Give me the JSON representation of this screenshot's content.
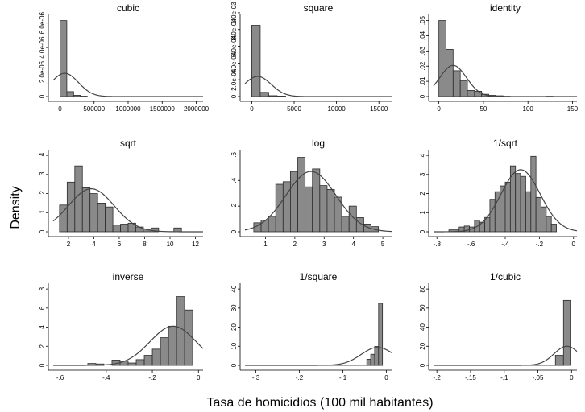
{
  "chart_data": {
    "type": "histogram-grid",
    "ylabel": "Density",
    "xlabel": "Tasa de homicidios (100 mil habitantes)",
    "panels": [
      {
        "title": "cubic",
        "xticks": [
          0,
          500000,
          1000000,
          1500000,
          2000000
        ],
        "xtick_labels": [
          "0",
          "500000",
          "1000000",
          "1500000",
          "2000000"
        ],
        "xlim": [
          -100000,
          2100000
        ],
        "yticks": [
          0,
          2e-06,
          4e-06,
          6e-06
        ],
        "ytick_labels": [
          "0",
          "2.0e-06",
          "4.0e-06",
          "6.0e-06"
        ],
        "ylim": [
          0,
          6.7e-06
        ],
        "bins": [
          [
            0,
            100000,
            6.2e-06
          ],
          [
            100000,
            200000,
            4e-07
          ],
          [
            200000,
            300000,
            1e-07
          ],
          [
            300000,
            400000,
            3e-08
          ]
        ],
        "curve": {
          "mu": 70000,
          "sigma": 200000,
          "scale": 1.9e-06
        }
      },
      {
        "title": "square",
        "xticks": [
          0,
          5000,
          10000,
          15000
        ],
        "xtick_labels": [
          "0",
          "5000",
          "10000",
          "15000"
        ],
        "xlim": [
          -800,
          16500
        ],
        "yticks": [
          0,
          0.0002,
          0.0004,
          0.0006,
          0.0008,
          0.001
        ],
        "ytick_labels": [
          "0",
          "2.0e-04",
          "4.0e-04",
          "6.0e-04",
          "8.0e-04",
          "1.0e-03"
        ],
        "ylim": [
          0,
          0.00098
        ],
        "bins": [
          [
            0,
            1000,
            0.00085
          ],
          [
            1000,
            2000,
            5e-05
          ],
          [
            2000,
            3000,
            1e-05
          ],
          [
            3000,
            4000,
            5e-06
          ]
        ],
        "curve": {
          "mu": 700,
          "sigma": 1600,
          "scale": 0.00024
        }
      },
      {
        "title": "identity",
        "xticks": [
          0,
          50,
          100,
          150
        ],
        "xtick_labels": [
          "0",
          "50",
          "100",
          "150"
        ],
        "xlim": [
          -6,
          155
        ],
        "yticks": [
          0,
          0.01,
          0.02,
          0.03,
          0.04,
          0.05
        ],
        "ytick_labels": [
          "0",
          ".01",
          ".02",
          ".03",
          ".04",
          ".05"
        ],
        "ylim": [
          0,
          0.054
        ],
        "bins": [
          [
            0,
            8,
            0.05
          ],
          [
            8,
            16,
            0.031
          ],
          [
            16,
            24,
            0.017
          ],
          [
            24,
            32,
            0.0105
          ],
          [
            32,
            40,
            0.004
          ],
          [
            40,
            48,
            0.0035
          ],
          [
            48,
            56,
            0.0015
          ],
          [
            56,
            64,
            0.0008
          ],
          [
            64,
            72,
            0.0005
          ],
          [
            72,
            80,
            0.0002
          ],
          [
            120,
            128,
            0.0002
          ]
        ],
        "curve": {
          "mu": 16,
          "sigma": 15,
          "scale": 0.0205
        }
      },
      {
        "title": "sqrt",
        "xticks": [
          2,
          4,
          6,
          8,
          10,
          12
        ],
        "xtick_labels": [
          "2",
          "4",
          "6",
          "8",
          "10",
          "12"
        ],
        "xlim": [
          0.8,
          12.6
        ],
        "yticks": [
          0,
          0.1,
          0.2,
          0.3,
          0.4
        ],
        "ytick_labels": [
          "0",
          ".1",
          ".2",
          ".3",
          ".4"
        ],
        "ylim": [
          0,
          0.43
        ],
        "bins": [
          [
            1.3,
            1.9,
            0.14
          ],
          [
            1.9,
            2.5,
            0.26
          ],
          [
            2.5,
            3.1,
            0.345
          ],
          [
            3.1,
            3.7,
            0.23
          ],
          [
            3.7,
            4.3,
            0.2
          ],
          [
            4.3,
            4.9,
            0.15
          ],
          [
            4.9,
            5.5,
            0.13
          ],
          [
            5.5,
            6.1,
            0.035
          ],
          [
            6.1,
            6.7,
            0.04
          ],
          [
            6.7,
            7.3,
            0.045
          ],
          [
            7.3,
            7.9,
            0.025
          ],
          [
            7.9,
            8.5,
            0.015
          ],
          [
            8.5,
            9.1,
            0.02
          ],
          [
            10.3,
            10.9,
            0.02
          ]
        ],
        "curve": {
          "mu": 3.8,
          "sigma": 1.8,
          "scale": 0.225
        }
      },
      {
        "title": "log",
        "xticks": [
          1,
          2,
          3,
          4,
          5
        ],
        "xtick_labels": [
          "1",
          "2",
          "3",
          "4",
          "5"
        ],
        "xlim": [
          0.3,
          5.3
        ],
        "yticks": [
          0,
          0.2,
          0.4,
          0.6
        ],
        "ytick_labels": [
          "0",
          ".2",
          ".4",
          ".6"
        ],
        "ylim": [
          0,
          0.64
        ],
        "bins": [
          [
            0.6,
            0.85,
            0.07
          ],
          [
            0.85,
            1.1,
            0.09
          ],
          [
            1.1,
            1.35,
            0.12
          ],
          [
            1.35,
            1.6,
            0.37
          ],
          [
            1.6,
            1.85,
            0.39
          ],
          [
            1.85,
            2.1,
            0.47
          ],
          [
            2.1,
            2.35,
            0.58
          ],
          [
            2.35,
            2.6,
            0.35
          ],
          [
            2.6,
            2.85,
            0.49
          ],
          [
            2.85,
            3.1,
            0.36
          ],
          [
            3.1,
            3.35,
            0.33
          ],
          [
            3.35,
            3.6,
            0.27
          ],
          [
            3.6,
            3.85,
            0.12
          ],
          [
            3.85,
            4.1,
            0.2
          ],
          [
            4.1,
            4.35,
            0.11
          ],
          [
            4.35,
            4.6,
            0.06
          ],
          [
            4.6,
            4.85,
            0.04
          ]
        ],
        "curve": {
          "mu": 2.55,
          "sigma": 0.85,
          "scale": 0.47
        }
      },
      {
        "title": "1/sqrt",
        "xticks": [
          -0.8,
          -0.6,
          -0.4,
          -0.2,
          0
        ],
        "xtick_labels": [
          "-.8",
          "-.6",
          "-.4",
          "-.2",
          "0"
        ],
        "xlim": [
          -0.82,
          0.02
        ],
        "yticks": [
          0,
          1,
          2,
          3,
          4
        ],
        "ytick_labels": [
          "0",
          "1",
          "2",
          "3",
          "4"
        ],
        "ylim": [
          0,
          4.3
        ],
        "bins": [
          [
            -0.73,
            -0.7,
            0.1
          ],
          [
            -0.7,
            -0.67,
            0.1
          ],
          [
            -0.67,
            -0.64,
            0.25
          ],
          [
            -0.64,
            -0.61,
            0.3
          ],
          [
            -0.61,
            -0.58,
            0.25
          ],
          [
            -0.58,
            -0.55,
            0.6
          ],
          [
            -0.55,
            -0.52,
            0.5
          ],
          [
            -0.52,
            -0.49,
            0.75
          ],
          [
            -0.49,
            -0.46,
            1.7
          ],
          [
            -0.46,
            -0.43,
            2.1
          ],
          [
            -0.43,
            -0.4,
            2.4
          ],
          [
            -0.4,
            -0.37,
            2.6
          ],
          [
            -0.37,
            -0.34,
            3.45
          ],
          [
            -0.34,
            -0.31,
            3.05
          ],
          [
            -0.31,
            -0.28,
            2.9
          ],
          [
            -0.28,
            -0.25,
            2.1
          ],
          [
            -0.25,
            -0.22,
            3.95
          ],
          [
            -0.22,
            -0.19,
            1.8
          ],
          [
            -0.19,
            -0.16,
            1.3
          ],
          [
            -0.16,
            -0.13,
            0.8
          ],
          [
            -0.13,
            -0.1,
            0.4
          ]
        ],
        "curve": {
          "mu": -0.31,
          "sigma": 0.115,
          "scale": 3.25
        }
      },
      {
        "title": "inverse",
        "xticks": [
          -0.6,
          -0.4,
          -0.2,
          0
        ],
        "xtick_labels": [
          "-.6",
          "-.4",
          "-.2",
          "0"
        ],
        "xlim": [
          -0.63,
          0.02
        ],
        "yticks": [
          0,
          2,
          4,
          6,
          8
        ],
        "ytick_labels": [
          "0",
          "2",
          "4",
          "6",
          "8"
        ],
        "ylim": [
          0,
          8.6
        ],
        "bins": [
          [
            -0.55,
            -0.515,
            0.05
          ],
          [
            -0.48,
            -0.445,
            0.2
          ],
          [
            -0.445,
            -0.41,
            0.15
          ],
          [
            -0.375,
            -0.34,
            0.55
          ],
          [
            -0.34,
            -0.305,
            0.45
          ],
          [
            -0.305,
            -0.27,
            0.25
          ],
          [
            -0.27,
            -0.235,
            0.6
          ],
          [
            -0.235,
            -0.2,
            1.05
          ],
          [
            -0.2,
            -0.165,
            1.7
          ],
          [
            -0.165,
            -0.13,
            2.9
          ],
          [
            -0.13,
            -0.095,
            4.1
          ],
          [
            -0.095,
            -0.06,
            7.2
          ],
          [
            -0.06,
            -0.025,
            5.8
          ]
        ],
        "curve": {
          "mu": -0.11,
          "sigma": 0.1,
          "scale": 4.1
        }
      },
      {
        "title": "1/square",
        "xticks": [
          -0.3,
          -0.2,
          -0.1,
          0
        ],
        "xtick_labels": [
          "-.3",
          "-.2",
          "-.1",
          "0"
        ],
        "xlim": [
          -0.325,
          0.012
        ],
        "yticks": [
          0,
          10,
          20,
          30,
          40
        ],
        "ytick_labels": [
          "0",
          "10",
          "20",
          "30",
          "40"
        ],
        "ylim": [
          0,
          43
        ],
        "bins": [
          [
            -0.3,
            -0.018,
            0.12
          ],
          [
            -0.018,
            -0.009,
            0.1
          ],
          [
            -0.045,
            -0.036,
            3.2
          ],
          [
            -0.036,
            -0.027,
            5.8
          ],
          [
            -0.027,
            -0.018,
            9.9
          ],
          [
            -0.018,
            -0.009,
            32.5
          ]
        ],
        "curve": {
          "mu": -0.02,
          "sigma": 0.038,
          "scale": 9.4
        }
      },
      {
        "title": "1/cubic",
        "xticks": [
          -0.2,
          -0.15,
          -0.1,
          -0.05,
          0
        ],
        "xtick_labels": [
          "-.2",
          "-.15",
          "-.1",
          "-.05",
          "0"
        ],
        "xlim": [
          -0.205,
          0.008
        ],
        "yticks": [
          0,
          20,
          40,
          60,
          80
        ],
        "ytick_labels": [
          "0",
          "20",
          "40",
          "60",
          "80"
        ],
        "ylim": [
          0,
          86
        ],
        "bins": [
          [
            -0.17,
            -0.012,
            0.25
          ],
          [
            -0.024,
            -0.012,
            10.5
          ],
          [
            -0.012,
            -0.001,
            68
          ]
        ],
        "curve": {
          "mu": -0.007,
          "sigma": 0.019,
          "scale": 20
        }
      }
    ]
  }
}
